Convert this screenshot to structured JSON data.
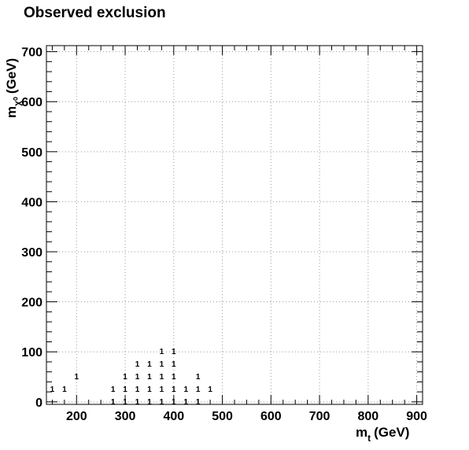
{
  "chart_data": {
    "type": "scatter",
    "title": "Observed exclusion",
    "xlabel": {
      "main": "m",
      "sub": "t",
      "unit": "(GeV)"
    },
    "ylabel": {
      "main": "m",
      "sub": "χ⁰",
      "unit": "(GeV)"
    },
    "xlim": [
      138,
      912
    ],
    "ylim": [
      -5,
      712
    ],
    "x_ticks": [
      200,
      300,
      400,
      500,
      600,
      700,
      800,
      900
    ],
    "y_ticks": [
      0,
      100,
      200,
      300,
      400,
      500,
      600,
      700
    ],
    "grid": true,
    "points": [
      {
        "x": 150,
        "y": 25,
        "label": "1"
      },
      {
        "x": 175,
        "y": 25,
        "label": "1"
      },
      {
        "x": 200,
        "y": 50,
        "label": "1"
      },
      {
        "x": 275,
        "y": 0,
        "label": "1"
      },
      {
        "x": 275,
        "y": 25,
        "label": "1"
      },
      {
        "x": 300,
        "y": 0,
        "label": "1"
      },
      {
        "x": 300,
        "y": 25,
        "label": "1"
      },
      {
        "x": 300,
        "y": 50,
        "label": "1"
      },
      {
        "x": 325,
        "y": 0,
        "label": "1"
      },
      {
        "x": 325,
        "y": 25,
        "label": "1"
      },
      {
        "x": 325,
        "y": 50,
        "label": "1"
      },
      {
        "x": 325,
        "y": 75,
        "label": "1"
      },
      {
        "x": 350,
        "y": 0,
        "label": "1"
      },
      {
        "x": 350,
        "y": 25,
        "label": "1"
      },
      {
        "x": 350,
        "y": 50,
        "label": "1"
      },
      {
        "x": 350,
        "y": 75,
        "label": "1"
      },
      {
        "x": 375,
        "y": 0,
        "label": "1"
      },
      {
        "x": 375,
        "y": 25,
        "label": "1"
      },
      {
        "x": 375,
        "y": 50,
        "label": "1"
      },
      {
        "x": 375,
        "y": 75,
        "label": "1"
      },
      {
        "x": 375,
        "y": 100,
        "label": "1"
      },
      {
        "x": 400,
        "y": 0,
        "label": "1"
      },
      {
        "x": 400,
        "y": 25,
        "label": "1"
      },
      {
        "x": 400,
        "y": 50,
        "label": "1"
      },
      {
        "x": 400,
        "y": 75,
        "label": "1"
      },
      {
        "x": 400,
        "y": 100,
        "label": "1"
      },
      {
        "x": 425,
        "y": 0,
        "label": "1"
      },
      {
        "x": 425,
        "y": 25,
        "label": "1"
      },
      {
        "x": 450,
        "y": 0,
        "label": "1"
      },
      {
        "x": 450,
        "y": 25,
        "label": "1"
      },
      {
        "x": 450,
        "y": 50,
        "label": "1"
      },
      {
        "x": 475,
        "y": 25,
        "label": "1"
      }
    ]
  }
}
